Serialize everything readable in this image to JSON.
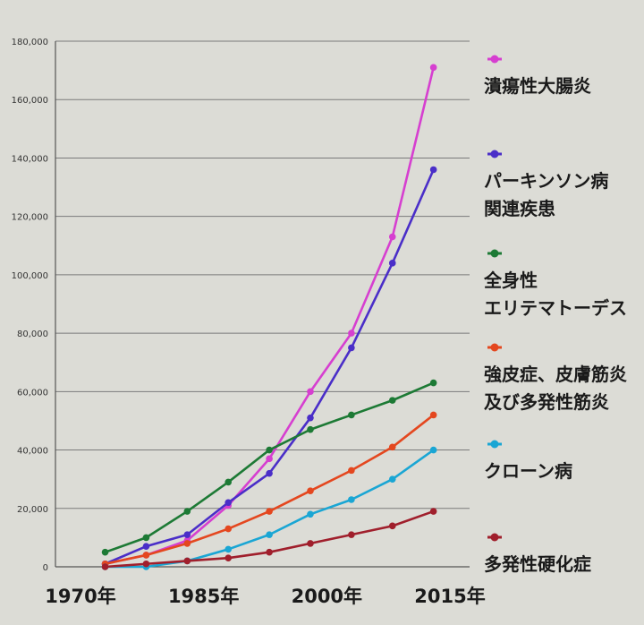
{
  "chart_data": {
    "type": "line",
    "title": "",
    "xlabel": "",
    "ylabel": "",
    "ylim": [
      0,
      180000
    ],
    "xlim": [
      1970,
      2015
    ],
    "grid": true,
    "legend_position": "right",
    "x_ticks": [
      {
        "value": 1970,
        "label": "1970年"
      },
      {
        "value": 1985,
        "label": "1985年"
      },
      {
        "value": 2000,
        "label": "2000年"
      },
      {
        "value": 2015,
        "label": "2015年"
      }
    ],
    "y_ticks": [
      {
        "value": 0,
        "label": "0"
      },
      {
        "value": 20000,
        "label": "20,000"
      },
      {
        "value": 40000,
        "label": "40,000"
      },
      {
        "value": 60000,
        "label": "60,000"
      },
      {
        "value": 80000,
        "label": "80,000"
      },
      {
        "value": 100000,
        "label": "100,000"
      },
      {
        "value": 120000,
        "label": "120,000"
      },
      {
        "value": 140000,
        "label": "140,000"
      },
      {
        "value": 160000,
        "label": "160,000"
      },
      {
        "value": 180000,
        "label": "180,000"
      }
    ],
    "x": [
      1973,
      1978,
      1983,
      1988,
      1993,
      1998,
      2003,
      2008,
      2013
    ],
    "series": [
      {
        "name": "潰瘍性大腸炎",
        "legend_lines": [
          "潰瘍性大腸炎"
        ],
        "color": "#d63fd0",
        "values": [
          1000,
          4000,
          9000,
          21000,
          37000,
          60000,
          80000,
          113000,
          171000
        ]
      },
      {
        "name": "パーキンソン病関連疾患",
        "legend_lines": [
          "パーキンソン病",
          "関連疾患"
        ],
        "color": "#4a2ec8",
        "values": [
          1000,
          7000,
          11000,
          22000,
          32000,
          51000,
          75000,
          104000,
          136000
        ]
      },
      {
        "name": "全身性エリテマトーデス",
        "legend_lines": [
          "全身性",
          "エリテマトーデス"
        ],
        "color": "#1d7a35",
        "values": [
          5000,
          10000,
          19000,
          29000,
          40000,
          47000,
          52000,
          57000,
          63000
        ]
      },
      {
        "name": "強皮症、皮膚筋炎及び多発性筋炎",
        "legend_lines": [
          "強皮症、皮膚筋炎",
          "及び多発性筋炎"
        ],
        "color": "#e4471f",
        "values": [
          1000,
          4000,
          8000,
          13000,
          19000,
          26000,
          33000,
          41000,
          52000
        ]
      },
      {
        "name": "クローン病",
        "legend_lines": [
          "クローン病"
        ],
        "color": "#1aa6d4",
        "values": [
          0,
          0,
          2000,
          6000,
          11000,
          18000,
          23000,
          30000,
          40000
        ]
      },
      {
        "name": "多発性硬化症",
        "legend_lines": [
          "多発性硬化症"
        ],
        "color": "#a01f2c",
        "values": [
          0,
          1000,
          2000,
          3000,
          5000,
          8000,
          11000,
          14000,
          19000
        ]
      }
    ]
  }
}
